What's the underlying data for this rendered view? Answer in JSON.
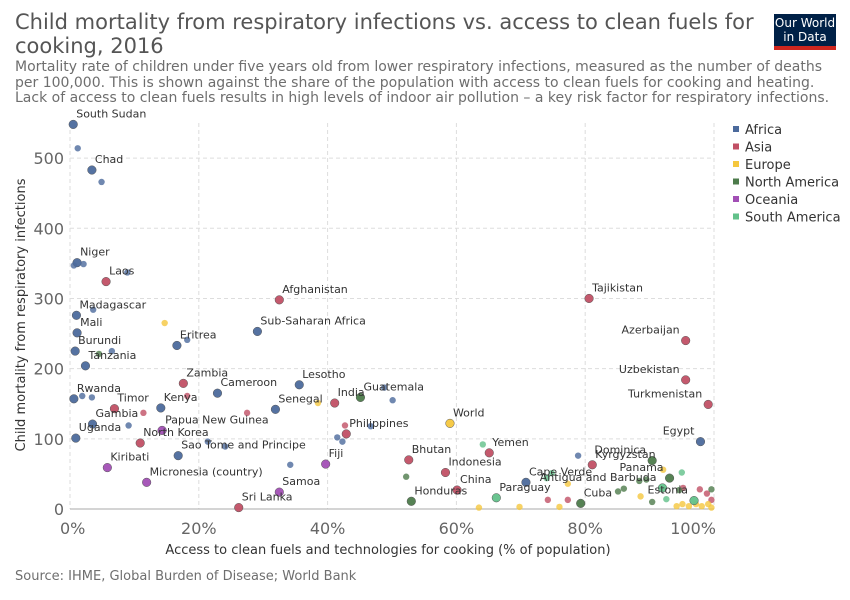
{
  "header": {
    "title": "Child mortality from respiratory infections vs. access to clean fuels for cooking, 2016",
    "subtitle": "Mortality rate of children under five years old from lower respiratory infections, measured as the number of deaths per 100,000. This is shown against the share of the population with access to clean fuels for cooking and heating. Lack of access to clean fuels results in high levels of indoor air pollution – a key risk factor for respiratory infections.",
    "logo_line1": "Our World",
    "logo_line2": "in Data",
    "logo_color": "#002147",
    "logo_accent": "#ce261e"
  },
  "footer": {
    "source": "Source: IHME, Global Burden of Disease; World Bank"
  },
  "chart_data": {
    "type": "scatter",
    "xlabel": "Access to clean fuels and technologies for cooking (% of population)",
    "ylabel": "Child mortality from respiratory infections",
    "xlim": [
      0,
      100
    ],
    "ylim": [
      0,
      550
    ],
    "x_ticks": [
      "0%",
      "20%",
      "40%",
      "60%",
      "80%",
      "100%"
    ],
    "y_ticks": [
      "0",
      "100",
      "200",
      "300",
      "400",
      "500"
    ],
    "grid": true,
    "legend_position": "right",
    "series": [
      {
        "name": "Africa",
        "color": "#4c6a9c",
        "points": [
          {
            "x": 0.5,
            "y": 548,
            "label": "South Sudan"
          },
          {
            "x": 1.2,
            "y": 514
          },
          {
            "x": 3.4,
            "y": 483,
            "label": "Chad"
          },
          {
            "x": 4.9,
            "y": 466
          },
          {
            "x": 1.1,
            "y": 351,
            "label": "Niger"
          },
          {
            "x": 2.1,
            "y": 349
          },
          {
            "x": 0.6,
            "y": 347
          },
          {
            "x": 8.9,
            "y": 337
          },
          {
            "x": 1.0,
            "y": 276,
            "label": "Madagascar"
          },
          {
            "x": 3.6,
            "y": 284
          },
          {
            "x": 1.1,
            "y": 251,
            "label": "Mali"
          },
          {
            "x": 16.6,
            "y": 233,
            "label": "Eritrea"
          },
          {
            "x": 29.1,
            "y": 253,
            "label": "Sub-Saharan Africa"
          },
          {
            "x": 18.2,
            "y": 241
          },
          {
            "x": 0.8,
            "y": 225,
            "label": "Burundi"
          },
          {
            "x": 6.5,
            "y": 225
          },
          {
            "x": 2.4,
            "y": 204,
            "label": "Tanzania"
          },
          {
            "x": 35.6,
            "y": 177,
            "label": "Lesotho"
          },
          {
            "x": 22.9,
            "y": 165,
            "label": "Cameroon"
          },
          {
            "x": 0.6,
            "y": 157,
            "label": "Rwanda"
          },
          {
            "x": 1.9,
            "y": 161
          },
          {
            "x": 3.4,
            "y": 159
          },
          {
            "x": 14.1,
            "y": 144,
            "label": "Kenya"
          },
          {
            "x": 31.9,
            "y": 142,
            "label": "Senegal"
          },
          {
            "x": 3.5,
            "y": 121,
            "label": "Gambia"
          },
          {
            "x": 9.1,
            "y": 119
          },
          {
            "x": 0.9,
            "y": 101,
            "label": "Uganda"
          },
          {
            "x": 16.8,
            "y": 76,
            "label": "Sao Tome and Principe"
          },
          {
            "x": 21.4,
            "y": 96
          },
          {
            "x": 24.1,
            "y": 89
          },
          {
            "x": 34.2,
            "y": 63
          },
          {
            "x": 41.5,
            "y": 102
          },
          {
            "x": 42.3,
            "y": 96
          },
          {
            "x": 46.7,
            "y": 118
          },
          {
            "x": 48.8,
            "y": 173
          },
          {
            "x": 50.1,
            "y": 155
          },
          {
            "x": 78.9,
            "y": 76
          },
          {
            "x": 70.8,
            "y": 38,
            "label": "Cape Verde"
          },
          {
            "x": 97.9,
            "y": 96,
            "label": "Egypt"
          }
        ]
      },
      {
        "name": "Asia",
        "color": "#c15065",
        "points": [
          {
            "x": 5.6,
            "y": 324,
            "label": "Laos"
          },
          {
            "x": 32.5,
            "y": 298,
            "label": "Afghanistan"
          },
          {
            "x": 80.6,
            "y": 300,
            "label": "Tajikistan"
          },
          {
            "x": 95.6,
            "y": 240,
            "label": "Azerbaijan"
          },
          {
            "x": 95.6,
            "y": 184,
            "label": "Uzbekistan"
          },
          {
            "x": 99.1,
            "y": 149,
            "label": "Turkmenistan"
          },
          {
            "x": 17.6,
            "y": 179,
            "label": "Zambia"
          },
          {
            "x": 18.2,
            "y": 161
          },
          {
            "x": 27.5,
            "y": 137
          },
          {
            "x": 41.1,
            "y": 151,
            "label": "India"
          },
          {
            "x": 42.9,
            "y": 107,
            "label": "Philippines"
          },
          {
            "x": 42.7,
            "y": 119
          },
          {
            "x": 6.9,
            "y": 143,
            "label": "Timor"
          },
          {
            "x": 11.4,
            "y": 137
          },
          {
            "x": 10.9,
            "y": 94,
            "label": "North Korea"
          },
          {
            "x": 52.6,
            "y": 70,
            "label": "Bhutan"
          },
          {
            "x": 58.3,
            "y": 52,
            "label": "Indonesia"
          },
          {
            "x": 65.1,
            "y": 80,
            "label": "Yemen"
          },
          {
            "x": 81.1,
            "y": 63,
            "label": "Kyrgyzstan"
          },
          {
            "x": 26.2,
            "y": 2,
            "label": "Sri Lanka"
          },
          {
            "x": 60.1,
            "y": 27,
            "label": "China"
          },
          {
            "x": 77.3,
            "y": 13
          },
          {
            "x": 74.2,
            "y": 13
          },
          {
            "x": 95.2,
            "y": 30
          },
          {
            "x": 97.8,
            "y": 28
          },
          {
            "x": 98.9,
            "y": 22
          },
          {
            "x": 99.6,
            "y": 13
          }
        ]
      },
      {
        "name": "Europe",
        "color": "#f5c73e",
        "points": [
          {
            "x": 14.7,
            "y": 265
          },
          {
            "x": 38.5,
            "y": 151
          },
          {
            "x": 59.0,
            "y": 122,
            "label": "World"
          },
          {
            "x": 63.5,
            "y": 2
          },
          {
            "x": 69.8,
            "y": 3
          },
          {
            "x": 76.0,
            "y": 3
          },
          {
            "x": 77.3,
            "y": 36
          },
          {
            "x": 88.6,
            "y": 18
          },
          {
            "x": 92.1,
            "y": 56
          },
          {
            "x": 94.2,
            "y": 4
          },
          {
            "x": 95.1,
            "y": 7
          },
          {
            "x": 96.1,
            "y": 4
          },
          {
            "x": 97.2,
            "y": 7
          },
          {
            "x": 98.1,
            "y": 4
          },
          {
            "x": 99.1,
            "y": 7
          },
          {
            "x": 99.6,
            "y": 2
          }
        ]
      },
      {
        "name": "North America",
        "color": "#4d7b4b",
        "points": [
          {
            "x": 4.5,
            "y": 221
          },
          {
            "x": 45.1,
            "y": 159,
            "label": "Guatemala"
          },
          {
            "x": 52.2,
            "y": 46
          },
          {
            "x": 53.0,
            "y": 11,
            "label": "Honduras"
          },
          {
            "x": 79.3,
            "y": 8,
            "label": "Cuba"
          },
          {
            "x": 85.1,
            "y": 25
          },
          {
            "x": 86.0,
            "y": 29
          },
          {
            "x": 88.4,
            "y": 40
          },
          {
            "x": 89.5,
            "y": 42
          },
          {
            "x": 90.4,
            "y": 69,
            "label": "Dominica"
          },
          {
            "x": 90.4,
            "y": 10
          },
          {
            "x": 93.1,
            "y": 44,
            "label": "Panama"
          },
          {
            "x": 94.6,
            "y": 27
          },
          {
            "x": 99.6,
            "y": 28
          }
        ]
      },
      {
        "name": "Oceania",
        "color": "#a24fb5",
        "points": [
          {
            "x": 5.8,
            "y": 59,
            "label": "Kiribati"
          },
          {
            "x": 11.9,
            "y": 38,
            "label": "Micronesia (country)"
          },
          {
            "x": 14.3,
            "y": 112,
            "label": "Papua New Guinea"
          },
          {
            "x": 32.5,
            "y": 24,
            "label": "Samoa"
          },
          {
            "x": 39.7,
            "y": 64,
            "label": "Fiji"
          }
        ]
      },
      {
        "name": "South America",
        "color": "#62c18a",
        "points": [
          {
            "x": 64.1,
            "y": 92
          },
          {
            "x": 66.2,
            "y": 16,
            "label": "Paraguay"
          },
          {
            "x": 74.0,
            "y": 44
          },
          {
            "x": 74.8,
            "y": 51
          },
          {
            "x": 92.0,
            "y": 30,
            "label": "Antigua and Barbuda"
          },
          {
            "x": 95.0,
            "y": 52
          },
          {
            "x": 96.9,
            "y": 12,
            "label": "Estonia"
          },
          {
            "x": 92.6,
            "y": 14
          }
        ]
      }
    ]
  }
}
